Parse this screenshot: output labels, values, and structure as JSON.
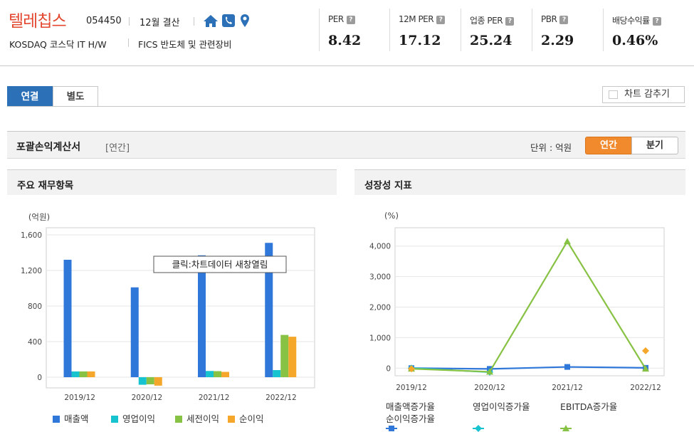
{
  "header": {
    "company_name": "텔레칩스",
    "company_code": "054450",
    "settlement": "12월 결산",
    "market": "KOSDAQ  코스닥 IT H/W",
    "sector": "FICS 반도체 및 관련장비",
    "help_glyph": "?",
    "metrics": [
      {
        "label": "PER",
        "value": "8.42"
      },
      {
        "label": "12M PER",
        "value": "17.12"
      },
      {
        "label": "업종 PER",
        "value": "25.24"
      },
      {
        "label": "PBR",
        "value": "2.29"
      },
      {
        "label": "배당수익률",
        "value": "0.46%"
      }
    ],
    "icon_color": "#2c71b8"
  },
  "tabs": {
    "consolidated": "연결",
    "separate": "별도",
    "hide_chart": "차트 감추기"
  },
  "section": {
    "title": "포괄손익계산서",
    "subtitle": "[연간]",
    "unit": "단위 : 억원",
    "annual": "연간",
    "quarter": "분기"
  },
  "left_panel": {
    "title": "주요 재무항목",
    "tooltip": "클릭:차트데이터 새창열림"
  },
  "right_panel": {
    "title": "성장성 지표"
  },
  "chart_data": [
    {
      "type": "bar",
      "ylabel": "(억원)",
      "ylim": [
        -120,
        1680
      ],
      "yticks": [
        0,
        400,
        800,
        1200,
        1600
      ],
      "ytick_labels": [
        "0",
        "400",
        "800",
        "1,200",
        "1,600"
      ],
      "categories": [
        "2019/12",
        "2020/12",
        "2021/12",
        "2022/12"
      ],
      "grid": true,
      "legend_position": "bottom",
      "series": [
        {
          "name": "매출액",
          "color": "#2f77d9",
          "values": [
            1320,
            1010,
            1370,
            1510
          ]
        },
        {
          "name": "영업이익",
          "color": "#17c3cf",
          "values": [
            65,
            -85,
            70,
            80
          ]
        },
        {
          "name": "세전이익",
          "color": "#88c245",
          "values": [
            65,
            -80,
            68,
            475
          ]
        },
        {
          "name": "순이익",
          "color": "#f4a72b",
          "values": [
            65,
            -95,
            60,
            455
          ]
        }
      ]
    },
    {
      "type": "line",
      "ylabel": "(%)",
      "ylim": [
        -250,
        4600
      ],
      "yticks": [
        0,
        1000,
        2000,
        3000,
        4000
      ],
      "ytick_labels": [
        "0",
        "1,000",
        "2,000",
        "3,000",
        "4,000"
      ],
      "categories": [
        "2019/12",
        "2020/12",
        "2021/12",
        "2022/12"
      ],
      "grid": true,
      "legend_position": "bottom",
      "series": [
        {
          "name": "매출액증가율",
          "color": "#2f77d9",
          "marker": "square",
          "values": [
            0,
            -25,
            40,
            10
          ]
        },
        {
          "name": "영업이익증가율",
          "color": "#17c3cf",
          "marker": "diamond",
          "values": [
            0,
            -130,
            null,
            null
          ]
        },
        {
          "name": "EBITDA증가율",
          "color": "#88c245",
          "marker": "triangle",
          "values": [
            -20,
            -120,
            4150,
            -20
          ]
        },
        {
          "name": "순이익증가율",
          "color": "#f4a72b",
          "marker": "diamond",
          "values": [
            -20,
            null,
            null,
            570
          ]
        }
      ]
    }
  ]
}
